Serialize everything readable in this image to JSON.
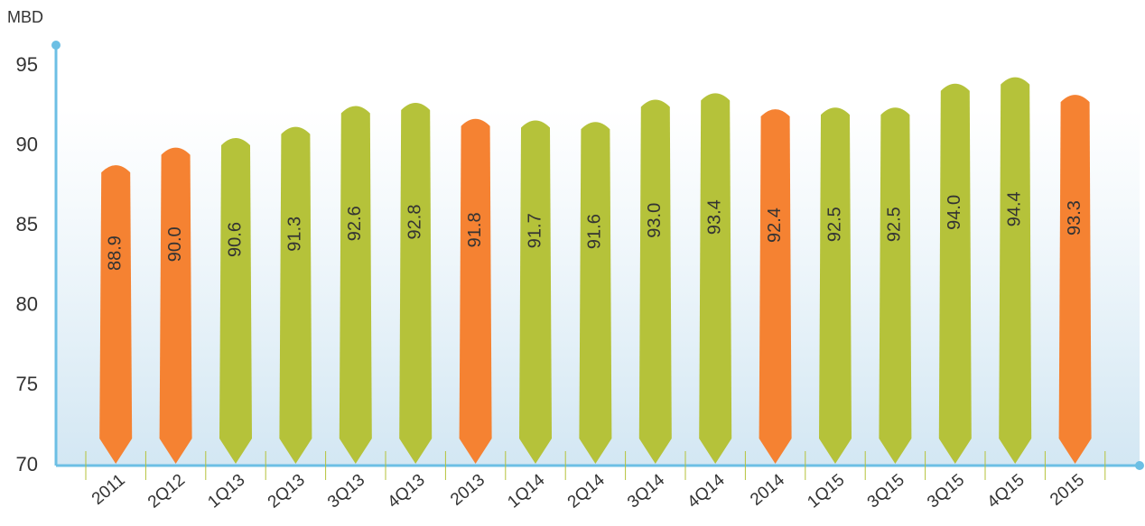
{
  "chart_data": {
    "type": "bar",
    "y_axis_label": "MBD",
    "categories": [
      "2011",
      "2Q12",
      "1Q13",
      "2Q13",
      "3Q13",
      "4Q13",
      "2013",
      "1Q14",
      "2Q14",
      "3Q14",
      "4Q14",
      "2014",
      "1Q15",
      "3Q15",
      "3Q15",
      "4Q15",
      "2015"
    ],
    "values": [
      88.9,
      90.0,
      90.6,
      91.3,
      92.6,
      92.8,
      91.8,
      91.7,
      91.6,
      93.0,
      93.4,
      92.4,
      92.5,
      92.5,
      94.0,
      94.4,
      93.3
    ],
    "value_labels": [
      "88.9",
      "90.0",
      "90.6",
      "91.3",
      "92.6",
      "92.8",
      "91.8",
      "91.7",
      "91.6",
      "93.0",
      "93.4",
      "92.4",
      "92.5",
      "92.5",
      "94.0",
      "94.4",
      "93.3"
    ],
    "colors": [
      "#f58232",
      "#f58232",
      "#b5c23a",
      "#b5c23a",
      "#b5c23a",
      "#b5c23a",
      "#f58232",
      "#b5c23a",
      "#b5c23a",
      "#b5c23a",
      "#b5c23a",
      "#f58232",
      "#b5c23a",
      "#b5c23a",
      "#b5c23a",
      "#b5c23a",
      "#f58232"
    ],
    "ylim": [
      70,
      95
    ],
    "yticks": [
      70,
      75,
      80,
      85,
      90,
      95
    ],
    "grid": false
  }
}
